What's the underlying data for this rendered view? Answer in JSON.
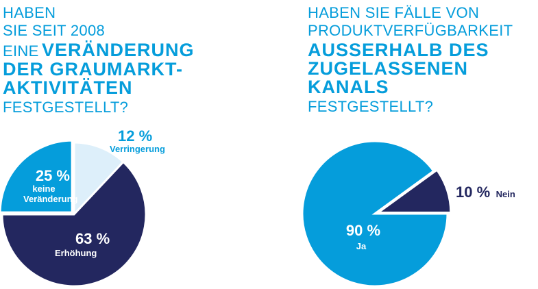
{
  "colors": {
    "dark": "#23275f",
    "blue": "#059ddb",
    "light": "#ddeffa"
  },
  "chart_data": [
    {
      "type": "pie",
      "title": {
        "line1": "HABEN",
        "line2": "SIE SEIT 2008",
        "line3_light": "EINE",
        "line3_bold": "VERÄNDERUNG",
        "line4": "DER GRAUMARKT-",
        "line5": "AKTIVITÄTEN",
        "line6": "FESTGESTELLT?"
      },
      "slices": [
        {
          "label": "keine Veränderung",
          "value": 25,
          "display": "25 %",
          "color": "#059ddb"
        },
        {
          "label": "Verringerung",
          "value": 12,
          "display": "12 %",
          "color": "#ddeffa"
        },
        {
          "label": "Erhöhung",
          "value": 63,
          "display": "63 %",
          "color": "#23275f"
        }
      ]
    },
    {
      "type": "pie",
      "title": {
        "line1": "HABEN SIE FÄLLE VON",
        "line2": "PRODUKTVERFÜGBARKEIT",
        "line3": "AUSSERHALB DES",
        "line4": "ZUGELASSENEN",
        "line5": "KANALS",
        "line6": "FESTGESTELLT?"
      },
      "slices": [
        {
          "label": "Nein",
          "value": 10,
          "display": "10 %",
          "color": "#23275f"
        },
        {
          "label": "Ja",
          "value": 90,
          "display": "90 %",
          "color": "#059ddb"
        }
      ]
    }
  ]
}
